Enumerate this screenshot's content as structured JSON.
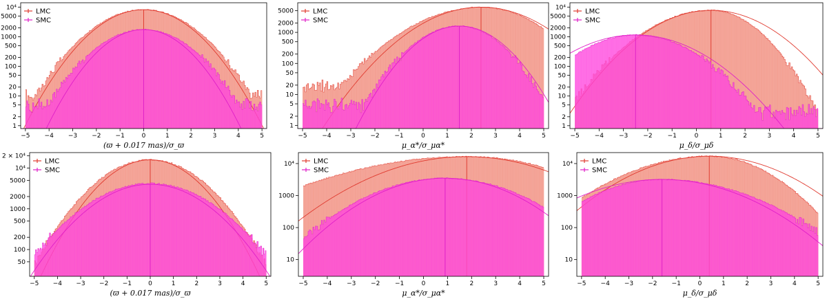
{
  "colors": {
    "lmc": "#f08a7a",
    "lmc_line": "#e03b30",
    "smc": "#ff44dd",
    "smc_line": "#e020c8"
  },
  "legend": [
    "LMC",
    "SMC"
  ],
  "chart_data": [
    {
      "type": "histogram-log",
      "row": 0,
      "col": 0,
      "xlabel": "(ϖ + 0.017 mas)/σ_ϖ",
      "xlim": [
        -5.2,
        5.2
      ],
      "ylim": [
        0.8,
        14000
      ],
      "xticks": [
        -5,
        -4,
        -3,
        -2,
        -1,
        0,
        1,
        2,
        3,
        4,
        5
      ],
      "yticks": [
        {
          "v": 1,
          "t": "1"
        },
        {
          "v": 2,
          "t": "2"
        },
        {
          "v": 5,
          "t": "5"
        },
        {
          "v": 10,
          "t": "10"
        },
        {
          "v": 20,
          "t": "20"
        },
        {
          "v": 50,
          "t": "50"
        },
        {
          "v": 100,
          "t": "100"
        },
        {
          "v": 200,
          "t": "200"
        },
        {
          "v": 500,
          "t": "500"
        },
        {
          "v": 1000,
          "t": "1000"
        },
        {
          "v": 2000,
          "t": "2000"
        },
        {
          "v": 5000,
          "t": "5000"
        },
        {
          "v": 10000,
          "t": "10⁴"
        }
      ],
      "series": [
        {
          "name": "LMC",
          "peak": 8200,
          "mode": 0.0,
          "sigL": 1.25,
          "sigR": 1.25,
          "floor": 10,
          "floorL": 10,
          "floorR": 10,
          "fitPeak": 8200,
          "fitSig": 1.18
        },
        {
          "name": "SMC",
          "peak": 1750,
          "mode": 0.0,
          "sigL": 1.18,
          "sigR": 1.18,
          "floor": 5,
          "floorL": 5,
          "floorR": 5,
          "fitPeak": 1750,
          "fitSig": 1.05
        }
      ]
    },
    {
      "type": "histogram-log",
      "row": 0,
      "col": 1,
      "xlabel": "μ_α*/σ_μα*",
      "xlim": [
        -5.2,
        5.2
      ],
      "ylim": [
        0.8,
        9000
      ],
      "xticks": [
        -5,
        -4,
        -3,
        -2,
        -1,
        0,
        1,
        2,
        3,
        4,
        5
      ],
      "yticks": [
        {
          "v": 1,
          "t": "1"
        },
        {
          "v": 2,
          "t": "2"
        },
        {
          "v": 5,
          "t": "5"
        },
        {
          "v": 10,
          "t": "10"
        },
        {
          "v": 20,
          "t": "20"
        },
        {
          "v": 50,
          "t": "50"
        },
        {
          "v": 100,
          "t": "100"
        },
        {
          "v": 200,
          "t": "200"
        },
        {
          "v": 500,
          "t": "500"
        },
        {
          "v": 1000,
          "t": "1000"
        },
        {
          "v": 2000,
          "t": "2000"
        },
        {
          "v": 5000,
          "t": "5000"
        }
      ],
      "series": [
        {
          "name": "LMC",
          "peak": 6500,
          "mode": 2.4,
          "sigL": 1.7,
          "sigR": 1.45,
          "floor": 0,
          "floorL": 20,
          "floorR": 0,
          "fitPeak": 6500,
          "fitSig": 1.55
        },
        {
          "name": "SMC",
          "peak": 1600,
          "mode": 1.5,
          "sigL": 1.15,
          "sigR": 1.05,
          "floor": 0,
          "floorL": 5,
          "floorR": 0,
          "fitPeak": 1600,
          "fitSig": 1.1
        }
      ]
    },
    {
      "type": "histogram-log",
      "row": 0,
      "col": 2,
      "xlabel": "μ_δ/σ_μδ",
      "xlim": [
        -5.2,
        5.2
      ],
      "ylim": [
        0.8,
        14000
      ],
      "xticks": [
        -5,
        -4,
        -3,
        -2,
        -1,
        0,
        1,
        2,
        3,
        4,
        5
      ],
      "yticks": [
        {
          "v": 1,
          "t": "1"
        },
        {
          "v": 2,
          "t": "2"
        },
        {
          "v": 5,
          "t": "5"
        },
        {
          "v": 10,
          "t": "10"
        },
        {
          "v": 20,
          "t": "20"
        },
        {
          "v": 50,
          "t": "50"
        },
        {
          "v": 100,
          "t": "100"
        },
        {
          "v": 200,
          "t": "200"
        },
        {
          "v": 500,
          "t": "500"
        },
        {
          "v": 1000,
          "t": "1000"
        },
        {
          "v": 2000,
          "t": "2000"
        },
        {
          "v": 5000,
          "t": "5000"
        },
        {
          "v": 10000,
          "t": "10⁴"
        }
      ],
      "series": [
        {
          "name": "LMC",
          "peak": 7800,
          "mode": 0.6,
          "sigL": 1.5,
          "sigR": 1.1,
          "floor": 0,
          "floorL": 0,
          "floorR": 0,
          "fitPeak": 7800,
          "fitSig": 1.45
        },
        {
          "name": "SMC",
          "peak": 1150,
          "mode": -2.5,
          "sigL": 1.4,
          "sigR": 1.45,
          "floor": 0,
          "floorL": 0,
          "floorR": 3,
          "fitPeak": 1150,
          "fitSig": 1.6
        }
      ]
    },
    {
      "type": "histogram-log",
      "row": 1,
      "col": 0,
      "xlabel": "(ϖ + 0.017 mas)/σ_ϖ",
      "xlim": [
        -5.2,
        5.2
      ],
      "ylim": [
        22,
        24000
      ],
      "xticks": [
        -5,
        -4,
        -3,
        -2,
        -1,
        0,
        1,
        2,
        3,
        4,
        5
      ],
      "yticks": [
        {
          "v": 50,
          "t": "50"
        },
        {
          "v": 100,
          "t": "100"
        },
        {
          "v": 200,
          "t": "200"
        },
        {
          "v": 500,
          "t": "500"
        },
        {
          "v": 1000,
          "t": "1000"
        },
        {
          "v": 2000,
          "t": "2000"
        },
        {
          "v": 5000,
          "t": "5000"
        },
        {
          "v": 10000,
          "t": "10⁴"
        },
        {
          "v": 20000,
          "t": "2 × 10⁴"
        }
      ],
      "series": [
        {
          "name": "LMC",
          "peak": 16000,
          "mode": 0.0,
          "sigL": 1.45,
          "sigR": 1.45,
          "floor": 45,
          "floorL": 45,
          "floorR": 45,
          "fitPeak": 16000,
          "fitSig": 1.3
        },
        {
          "name": "SMC",
          "peak": 4200,
          "mode": 0.0,
          "sigL": 1.75,
          "sigR": 1.75,
          "floor": 22,
          "floorL": 22,
          "floorR": 22,
          "fitPeak": 4000,
          "fitSig": 1.6
        }
      ]
    },
    {
      "type": "histogram-log",
      "row": 1,
      "col": 1,
      "xlabel": "μ_α*/σ_μα*",
      "xlim": [
        -5.2,
        5.2
      ],
      "ylim": [
        3,
        22000
      ],
      "xticks": [
        -5,
        -4,
        -3,
        -2,
        -1,
        0,
        1,
        2,
        3,
        4,
        5
      ],
      "yticks": [
        {
          "v": 10,
          "t": "10"
        },
        {
          "v": 100,
          "t": "100"
        },
        {
          "v": 1000,
          "t": "1000"
        },
        {
          "v": 10000,
          "t": "10⁴"
        }
      ],
      "series": [
        {
          "name": "LMC",
          "peak": 16500,
          "mode": 1.8,
          "sigL": 3.3,
          "sigR": 2.6,
          "floor": 0,
          "floorL": 80,
          "floorR": 0,
          "fitPeak": 16500,
          "fitSig": 2.3
        },
        {
          "name": "SMC",
          "peak": 3500,
          "mode": 0.9,
          "sigL": 2.0,
          "sigR": 2.0,
          "floor": 0,
          "floorL": 15,
          "floorR": 0,
          "fitPeak": 3500,
          "fitSig": 1.85
        }
      ]
    },
    {
      "type": "histogram-log",
      "row": 1,
      "col": 2,
      "xlabel": "μ_δ/σ_μδ",
      "xlim": [
        -5.2,
        5.2
      ],
      "ylim": [
        3,
        22000
      ],
      "xticks": [
        -5,
        -4,
        -3,
        -2,
        -1,
        0,
        1,
        2,
        3,
        4,
        5
      ],
      "yticks": [
        {
          "v": 10,
          "t": "10"
        },
        {
          "v": 100,
          "t": "100"
        },
        {
          "v": 1000,
          "t": "1000"
        },
        {
          "v": 10000,
          "t": "10⁴"
        }
      ],
      "series": [
        {
          "name": "LMC",
          "peak": 17000,
          "mode": 0.4,
          "sigL": 2.2,
          "sigR": 1.6,
          "floor": 0,
          "floorL": 80,
          "floorR": 0,
          "fitPeak": 17000,
          "fitSig": 2.0
        },
        {
          "name": "SMC",
          "peak": 3200,
          "mode": -1.6,
          "sigL": 1.9,
          "sigR": 2.4,
          "floor": 0,
          "floorL": 120,
          "floorR": 0,
          "fitPeak": 3200,
          "fitSig": 2.2
        }
      ]
    }
  ]
}
